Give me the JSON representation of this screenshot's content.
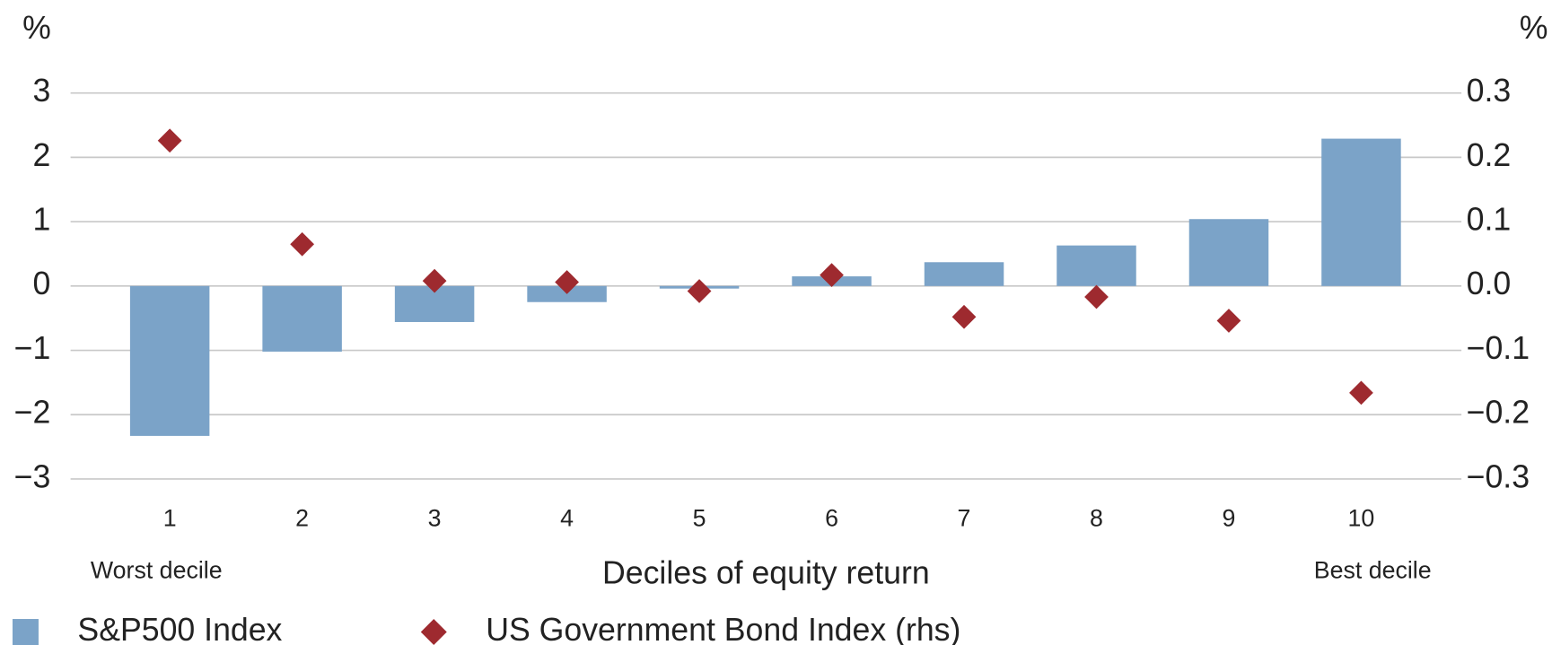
{
  "chart_data": {
    "type": "bar",
    "y_unit": "%",
    "y2_unit": "%",
    "x_label": "Deciles of equity return",
    "annotations": [
      "Worst decile",
      "Best decile"
    ],
    "categories": [
      "1",
      "2",
      "3",
      "4",
      "5",
      "6",
      "7",
      "8",
      "9",
      "10"
    ],
    "series": [
      {
        "name": "S&P500 Index",
        "type": "bar",
        "color": "#7ba3c8",
        "values": [
          -2.33,
          -1.02,
          -0.56,
          -0.25,
          -0.04,
          0.15,
          0.37,
          0.63,
          1.04,
          2.29
        ]
      },
      {
        "name": "US Government Bond Index (rhs)",
        "type": "scatter",
        "axis": "y2",
        "color": "#9e2a2f",
        "values": [
          0.226,
          0.065,
          0.008,
          0.006,
          -0.008,
          0.017,
          -0.048,
          -0.017,
          -0.054,
          -0.166
        ]
      }
    ],
    "ylim": [
      -3,
      3
    ],
    "yticks": [
      3,
      2,
      1,
      0,
      {
        "value": -1,
        "label": "−1"
      },
      {
        "value": -2,
        "label": "−2"
      },
      {
        "value": -3,
        "label": "−3"
      }
    ],
    "y2lim": [
      -0.3,
      0.3
    ],
    "y2ticks": [
      0.3,
      0.2,
      0.1,
      {
        "value": 0,
        "label": "0.0"
      },
      {
        "value": -0.1,
        "label": "−0.1"
      },
      {
        "value": -0.2,
        "label": "−0.2"
      },
      {
        "value": -0.3,
        "label": "−0.3"
      }
    ],
    "grid": true,
    "legend": "bottom-left"
  }
}
